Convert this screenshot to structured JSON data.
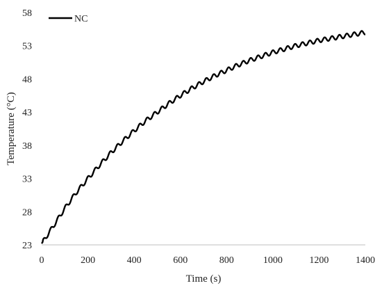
{
  "chart_data": {
    "type": "line",
    "xlabel": "Time (s)",
    "ylabel": "Temperature (°C)",
    "xlim": [
      0,
      1400
    ],
    "ylim": [
      23,
      58
    ],
    "x_ticks": [
      "0",
      "200",
      "400",
      "600",
      "800",
      "1000",
      "1200",
      "1400"
    ],
    "y_ticks": [
      "23",
      "28",
      "33",
      "38",
      "43",
      "48",
      "53",
      "58"
    ],
    "grid": false,
    "legend_position": "top-left",
    "series": [
      {
        "name": "NC",
        "color": "#000000",
        "x": [
          0,
          50,
          100,
          150,
          200,
          250,
          300,
          350,
          400,
          450,
          500,
          550,
          600,
          650,
          700,
          750,
          800,
          850,
          900,
          950,
          1000,
          1050,
          1100,
          1150,
          1200,
          1250,
          1300,
          1350,
          1400
        ],
        "y": [
          23.2,
          25.8,
          28.5,
          30.9,
          33.0,
          35.0,
          36.9,
          38.6,
          40.2,
          41.7,
          43.0,
          44.3,
          45.5,
          46.6,
          47.6,
          48.5,
          49.3,
          50.1,
          50.8,
          51.4,
          52.0,
          52.5,
          53.0,
          53.4,
          53.8,
          54.1,
          54.4,
          54.7,
          55.0
        ]
      }
    ]
  }
}
